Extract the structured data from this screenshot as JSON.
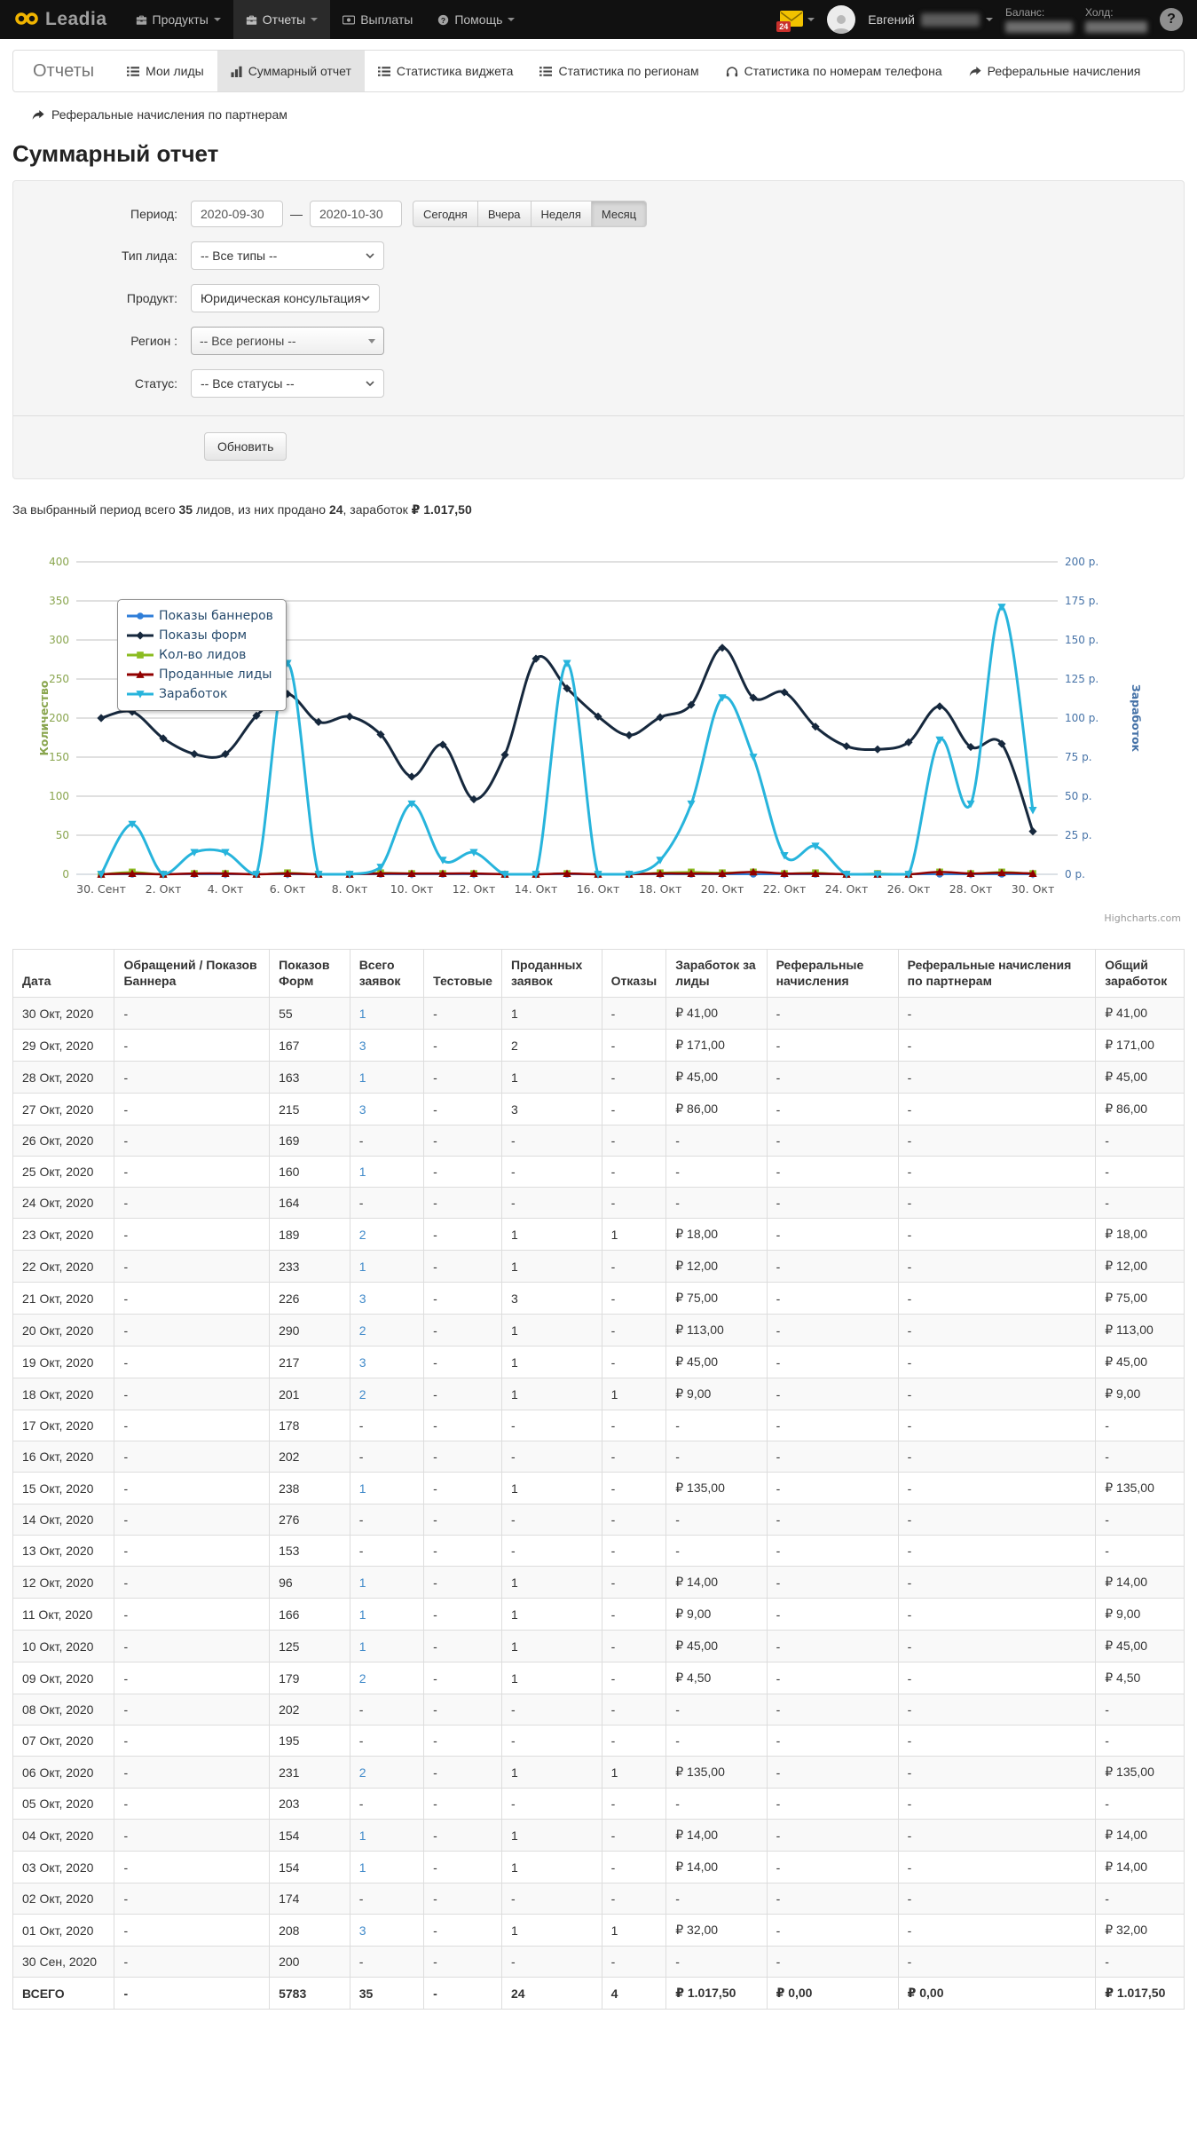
{
  "navbar": {
    "brand": "Leadia",
    "items": [
      {
        "label": "Продукты",
        "icon": "briefcase-icon",
        "dropdown": true,
        "active": false
      },
      {
        "label": "Отчеты",
        "icon": "briefcase-icon",
        "dropdown": true,
        "active": true
      },
      {
        "label": "Выплаты",
        "icon": "payments-icon",
        "dropdown": false,
        "active": false
      },
      {
        "label": "Помощь",
        "icon": "help-icon",
        "dropdown": true,
        "active": false
      }
    ],
    "mail_badge": "24",
    "user_name": "Евгений",
    "balance_label": "Баланс:",
    "hold_label": "Холд:"
  },
  "tabs": {
    "brand": "Отчеты",
    "items": [
      {
        "label": "Мои лиды",
        "icon": "list-icon",
        "active": false
      },
      {
        "label": "Суммарный отчет",
        "icon": "bar-chart-icon",
        "active": true
      },
      {
        "label": "Статистика виджета",
        "icon": "list-icon",
        "active": false
      },
      {
        "label": "Статистика по регионам",
        "icon": "list-icon",
        "active": false
      },
      {
        "label": "Статистика по номерам телефона",
        "icon": "headphones-icon",
        "active": false
      },
      {
        "label": "Реферальные начисления",
        "icon": "share-icon",
        "active": false
      }
    ],
    "breadcrumb": {
      "label": "Реферальные начисления по партнерам",
      "icon": "share-icon"
    }
  },
  "page_title": "Суммарный отчет",
  "filters": {
    "period_label": "Период:",
    "date_from": "2020-09-30",
    "date_to": "2020-10-30",
    "dash": "—",
    "quick_buttons": [
      {
        "label": "Сегодня",
        "active": false
      },
      {
        "label": "Вчера",
        "active": false
      },
      {
        "label": "Неделя",
        "active": false
      },
      {
        "label": "Месяц",
        "active": true
      }
    ],
    "type_label": "Тип лида:",
    "type_value": "-- Все типы --",
    "product_label": "Продукт:",
    "product_value": "Юридическая консультация",
    "region_label": "Регион :",
    "region_value": "-- Все регионы --",
    "status_label": "Статус:",
    "status_value": "-- Все статусы --",
    "submit_label": "Обновить"
  },
  "summary": {
    "prefix": "За выбранный период всего ",
    "total_leads": "35",
    "middle": " лидов, из них продано ",
    "sold": "24",
    "suffix": ", заработок ",
    "earnings": "₽ 1.017,50"
  },
  "chart_data": {
    "type": "line",
    "x_tick_labels": [
      "30. Сент",
      "2. Окт",
      "4. Окт",
      "6. Окт",
      "8. Окт",
      "10. Окт",
      "12. Окт",
      "14. Окт",
      "16. Окт",
      "18. Окт",
      "20. Окт",
      "22. Окт",
      "24. Окт",
      "26. Окт",
      "28. Окт",
      "30. Окт"
    ],
    "x_tick_indices": [
      0,
      2,
      4,
      6,
      8,
      10,
      12,
      14,
      16,
      18,
      20,
      22,
      24,
      26,
      28,
      30
    ],
    "y_left": {
      "title": "Количество",
      "min": 0,
      "max": 400,
      "step": 50,
      "color": "#89A54E"
    },
    "y_right": {
      "title": "Заработок",
      "min": 0,
      "max": 200,
      "step": 25,
      "suffix": " р.",
      "color": "#4572A7"
    },
    "grid": true,
    "legend_position": "top-left",
    "series": [
      {
        "name": "Показы баннеров",
        "color": "#2f7ed8",
        "marker": "circle",
        "axis": "left",
        "width": 2,
        "values": [
          0,
          0,
          0,
          0,
          0,
          0,
          0,
          0,
          0,
          0,
          0,
          0,
          0,
          0,
          0,
          0,
          0,
          0,
          0,
          0,
          0,
          0,
          0,
          0,
          0,
          0,
          0,
          0,
          0,
          0,
          0
        ]
      },
      {
        "name": "Показы форм",
        "color": "#16283d",
        "marker": "diamond",
        "axis": "left",
        "width": 3,
        "values": [
          200,
          208,
          174,
          154,
          154,
          203,
          231,
          195,
          202,
          179,
          125,
          166,
          96,
          153,
          276,
          238,
          202,
          178,
          201,
          217,
          290,
          226,
          233,
          189,
          164,
          160,
          169,
          215,
          163,
          167,
          55
        ]
      },
      {
        "name": "Кол-во лидов",
        "color": "#8bbc21",
        "marker": "square",
        "axis": "left",
        "width": 2,
        "values": [
          0,
          3,
          0,
          1,
          1,
          0,
          2,
          0,
          0,
          2,
          1,
          1,
          1,
          0,
          0,
          1,
          0,
          0,
          2,
          3,
          2,
          3,
          1,
          2,
          0,
          1,
          0,
          3,
          1,
          3,
          1
        ]
      },
      {
        "name": "Проданные лиды",
        "color": "#910000",
        "marker": "triangle",
        "axis": "left",
        "width": 2.5,
        "values": [
          0,
          1,
          0,
          1,
          1,
          0,
          1,
          0,
          0,
          1,
          1,
          1,
          1,
          0,
          0,
          1,
          0,
          0,
          1,
          1,
          1,
          3,
          1,
          1,
          0,
          0,
          0,
          3,
          1,
          2,
          1
        ]
      },
      {
        "name": "Заработок",
        "color": "#27b4dc",
        "marker": "triangle-down",
        "axis": "right",
        "width": 3,
        "values": [
          0,
          32,
          0,
          14,
          14,
          0,
          135,
          0,
          0,
          4.5,
          45,
          9,
          14,
          0,
          0,
          135,
          0,
          0,
          9,
          45,
          113,
          75,
          12,
          18,
          0,
          0,
          0,
          86,
          45,
          171,
          41
        ]
      }
    ],
    "credits": "Highcharts.com"
  },
  "table": {
    "headers": [
      "Дата",
      "Обращений / Показов Баннера",
      "Показов Форм",
      "Всего заявок",
      "Тестовые",
      "Проданных заявок",
      "Отказы",
      "Заработок за лиды",
      "Реферальные начисления",
      "Реферальные начисления по партнерам",
      "Общий заработок"
    ],
    "rows": [
      [
        "30 Окт, 2020",
        "-",
        "55",
        "1",
        "-",
        "1",
        "-",
        "₽ 41,00",
        "-",
        "-",
        "₽ 41,00"
      ],
      [
        "29 Окт, 2020",
        "-",
        "167",
        "3",
        "-",
        "2",
        "-",
        "₽ 171,00",
        "-",
        "-",
        "₽ 171,00"
      ],
      [
        "28 Окт, 2020",
        "-",
        "163",
        "1",
        "-",
        "1",
        "-",
        "₽ 45,00",
        "-",
        "-",
        "₽ 45,00"
      ],
      [
        "27 Окт, 2020",
        "-",
        "215",
        "3",
        "-",
        "3",
        "-",
        "₽ 86,00",
        "-",
        "-",
        "₽ 86,00"
      ],
      [
        "26 Окт, 2020",
        "-",
        "169",
        "-",
        "-",
        "-",
        "-",
        "-",
        "-",
        "-",
        "-"
      ],
      [
        "25 Окт, 2020",
        "-",
        "160",
        "1",
        "-",
        "-",
        "-",
        "-",
        "-",
        "-",
        "-"
      ],
      [
        "24 Окт, 2020",
        "-",
        "164",
        "-",
        "-",
        "-",
        "-",
        "-",
        "-",
        "-",
        "-"
      ],
      [
        "23 Окт, 2020",
        "-",
        "189",
        "2",
        "-",
        "1",
        "1",
        "₽ 18,00",
        "-",
        "-",
        "₽ 18,00"
      ],
      [
        "22 Окт, 2020",
        "-",
        "233",
        "1",
        "-",
        "1",
        "-",
        "₽ 12,00",
        "-",
        "-",
        "₽ 12,00"
      ],
      [
        "21 Окт, 2020",
        "-",
        "226",
        "3",
        "-",
        "3",
        "-",
        "₽ 75,00",
        "-",
        "-",
        "₽ 75,00"
      ],
      [
        "20 Окт, 2020",
        "-",
        "290",
        "2",
        "-",
        "1",
        "-",
        "₽ 113,00",
        "-",
        "-",
        "₽ 113,00"
      ],
      [
        "19 Окт, 2020",
        "-",
        "217",
        "3",
        "-",
        "1",
        "-",
        "₽ 45,00",
        "-",
        "-",
        "₽ 45,00"
      ],
      [
        "18 Окт, 2020",
        "-",
        "201",
        "2",
        "-",
        "1",
        "1",
        "₽ 9,00",
        "-",
        "-",
        "₽ 9,00"
      ],
      [
        "17 Окт, 2020",
        "-",
        "178",
        "-",
        "-",
        "-",
        "-",
        "-",
        "-",
        "-",
        "-"
      ],
      [
        "16 Окт, 2020",
        "-",
        "202",
        "-",
        "-",
        "-",
        "-",
        "-",
        "-",
        "-",
        "-"
      ],
      [
        "15 Окт, 2020",
        "-",
        "238",
        "1",
        "-",
        "1",
        "-",
        "₽ 135,00",
        "-",
        "-",
        "₽ 135,00"
      ],
      [
        "14 Окт, 2020",
        "-",
        "276",
        "-",
        "-",
        "-",
        "-",
        "-",
        "-",
        "-",
        "-"
      ],
      [
        "13 Окт, 2020",
        "-",
        "153",
        "-",
        "-",
        "-",
        "-",
        "-",
        "-",
        "-",
        "-"
      ],
      [
        "12 Окт, 2020",
        "-",
        "96",
        "1",
        "-",
        "1",
        "-",
        "₽ 14,00",
        "-",
        "-",
        "₽ 14,00"
      ],
      [
        "11 Окт, 2020",
        "-",
        "166",
        "1",
        "-",
        "1",
        "-",
        "₽ 9,00",
        "-",
        "-",
        "₽ 9,00"
      ],
      [
        "10 Окт, 2020",
        "-",
        "125",
        "1",
        "-",
        "1",
        "-",
        "₽ 45,00",
        "-",
        "-",
        "₽ 45,00"
      ],
      [
        "09 Окт, 2020",
        "-",
        "179",
        "2",
        "-",
        "1",
        "-",
        "₽ 4,50",
        "-",
        "-",
        "₽ 4,50"
      ],
      [
        "08 Окт, 2020",
        "-",
        "202",
        "-",
        "-",
        "-",
        "-",
        "-",
        "-",
        "-",
        "-"
      ],
      [
        "07 Окт, 2020",
        "-",
        "195",
        "-",
        "-",
        "-",
        "-",
        "-",
        "-",
        "-",
        "-"
      ],
      [
        "06 Окт, 2020",
        "-",
        "231",
        "2",
        "-",
        "1",
        "1",
        "₽ 135,00",
        "-",
        "-",
        "₽ 135,00"
      ],
      [
        "05 Окт, 2020",
        "-",
        "203",
        "-",
        "-",
        "-",
        "-",
        "-",
        "-",
        "-",
        "-"
      ],
      [
        "04 Окт, 2020",
        "-",
        "154",
        "1",
        "-",
        "1",
        "-",
        "₽ 14,00",
        "-",
        "-",
        "₽ 14,00"
      ],
      [
        "03 Окт, 2020",
        "-",
        "154",
        "1",
        "-",
        "1",
        "-",
        "₽ 14,00",
        "-",
        "-",
        "₽ 14,00"
      ],
      [
        "02 Окт, 2020",
        "-",
        "174",
        "-",
        "-",
        "-",
        "-",
        "-",
        "-",
        "-",
        "-"
      ],
      [
        "01 Окт, 2020",
        "-",
        "208",
        "3",
        "-",
        "1",
        "1",
        "₽ 32,00",
        "-",
        "-",
        "₽ 32,00"
      ],
      [
        "30 Сен, 2020",
        "-",
        "200",
        "-",
        "-",
        "-",
        "-",
        "-",
        "-",
        "-",
        "-"
      ]
    ],
    "total_row": [
      "ВСЕГО",
      "-",
      "5783",
      "35",
      "-",
      "24",
      "4",
      "₽ 1.017,50",
      "₽ 0,00",
      "₽ 0,00",
      "₽ 1.017,50"
    ]
  }
}
